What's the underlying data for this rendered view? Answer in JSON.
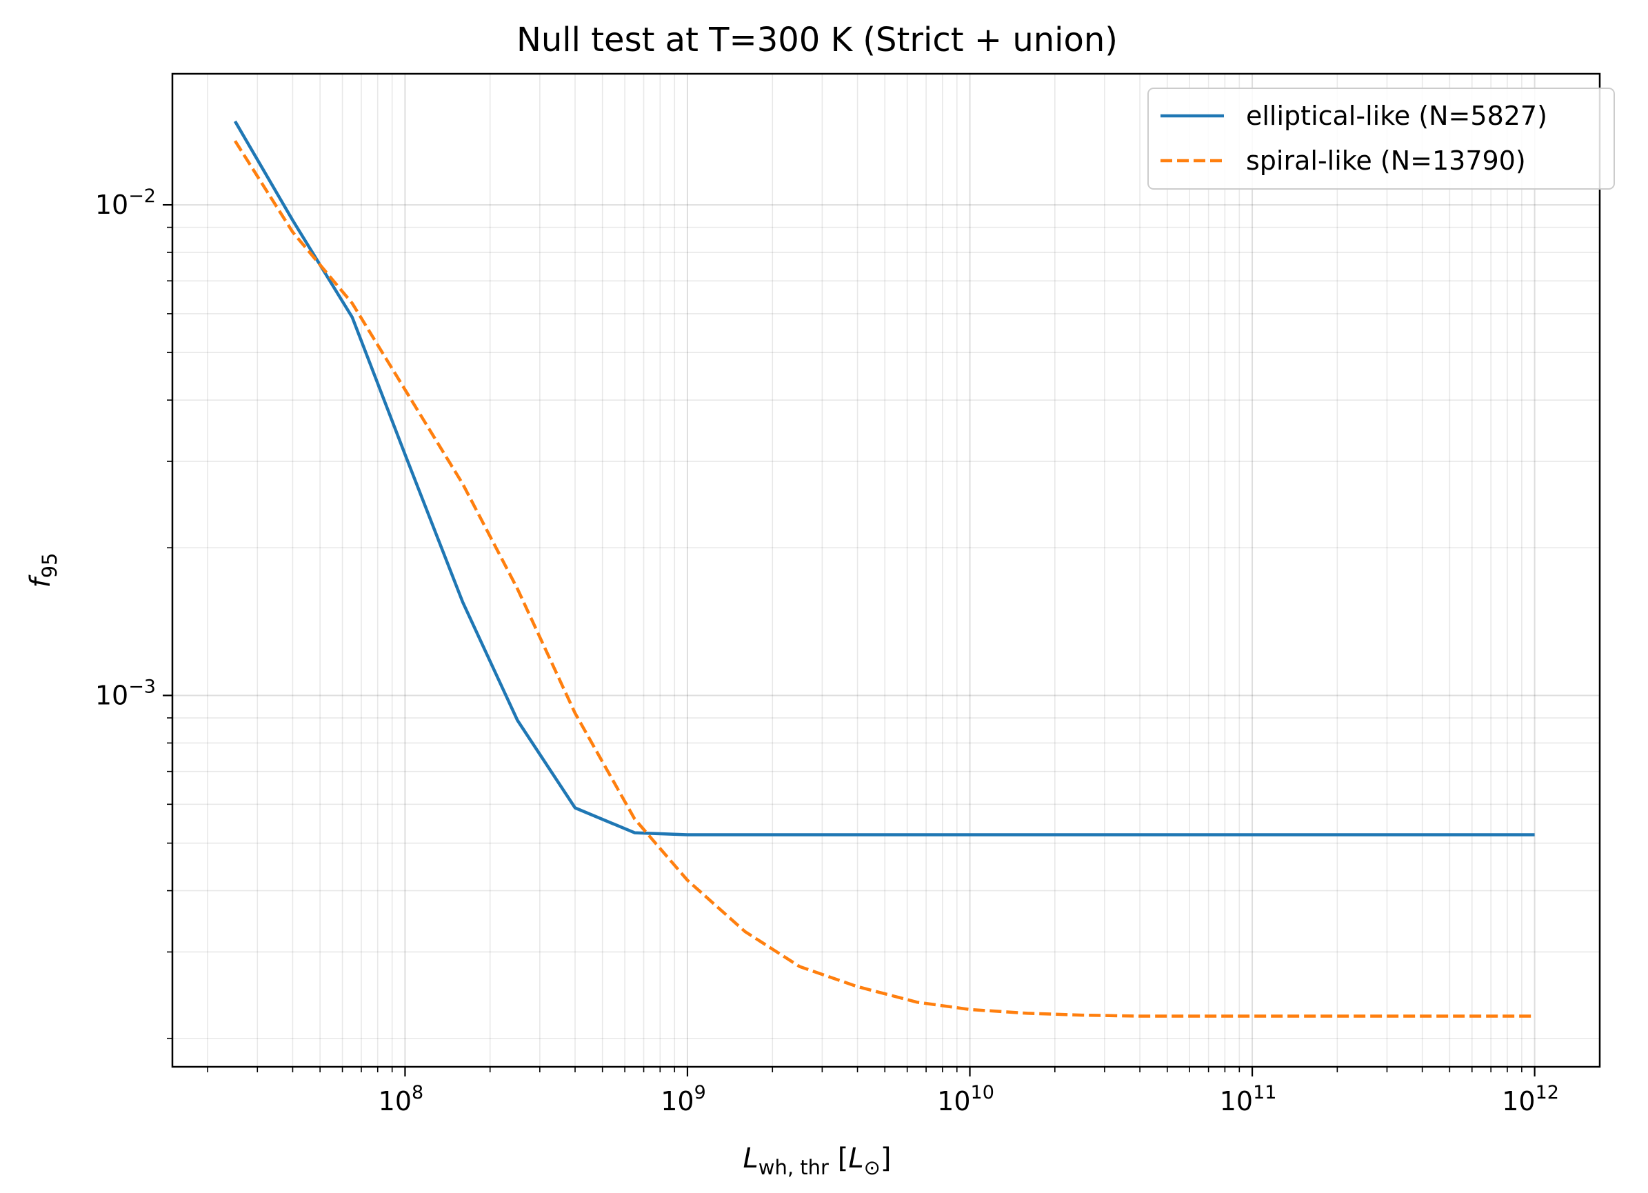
{
  "chart_data": {
    "type": "line",
    "title": "Null test at T=300 K (Strict + union)",
    "xlabel": {
      "main": "L",
      "sub": "wh, thr",
      "unit_open": " [",
      "unit_symbol": "L",
      "unit_sub": "⊙",
      "unit_close": "]"
    },
    "ylabel": {
      "main": "f",
      "sub": "95"
    },
    "xscale": "log",
    "yscale": "log",
    "xlim": [
      15000000.0,
      1700000000000.0
    ],
    "ylim": [
      0.000175,
      0.0185
    ],
    "x_major_ticks": [
      {
        "value": 100000000.0,
        "base": "10",
        "exp": "8"
      },
      {
        "value": 1000000000.0,
        "base": "10",
        "exp": "9"
      },
      {
        "value": 10000000000.0,
        "base": "10",
        "exp": "10"
      },
      {
        "value": 100000000000.0,
        "base": "10",
        "exp": "11"
      },
      {
        "value": 1000000000000.0,
        "base": "10",
        "exp": "12"
      }
    ],
    "y_major_ticks": [
      {
        "value": 0.01,
        "base": "10",
        "exp": "−2"
      },
      {
        "value": 0.001,
        "base": "10",
        "exp": "−3"
      }
    ],
    "grid": true,
    "legend_position": "upper right",
    "series": [
      {
        "name": "elliptical-like (N=5827)",
        "color": "#1f77b4",
        "style": "solid",
        "x": [
          25000000.0,
          40000000.0,
          65000000.0,
          100000000.0,
          160000000.0,
          250000000.0,
          400000000.0,
          650000000.0,
          1000000000.0,
          10000000000.0,
          100000000000.0,
          1000000000000.0
        ],
        "y": [
          0.0148,
          0.0093,
          0.0059,
          0.0031,
          0.00155,
          0.00089,
          0.00059,
          0.000525,
          0.00052,
          0.00052,
          0.00052,
          0.00052
        ]
      },
      {
        "name": "spiral-like (N=13790)",
        "color": "#ff7f0e",
        "style": "dashed",
        "x": [
          25000000.0,
          40000000.0,
          65000000.0,
          100000000.0,
          160000000.0,
          250000000.0,
          400000000.0,
          650000000.0,
          1000000000.0,
          1600000000.0,
          2500000000.0,
          4000000000.0,
          6500000000.0,
          10000000000.0,
          16000000000.0,
          25000000000.0,
          40000000000.0,
          65000000000.0,
          100000000000.0,
          1000000000000.0
        ],
        "y": [
          0.0135,
          0.0088,
          0.0063,
          0.0042,
          0.0027,
          0.00165,
          0.00092,
          0.00056,
          0.00042,
          0.00033,
          0.00028,
          0.000255,
          0.000237,
          0.000229,
          0.000225,
          0.000223,
          0.000222,
          0.000222,
          0.000222,
          0.000222
        ]
      }
    ]
  }
}
